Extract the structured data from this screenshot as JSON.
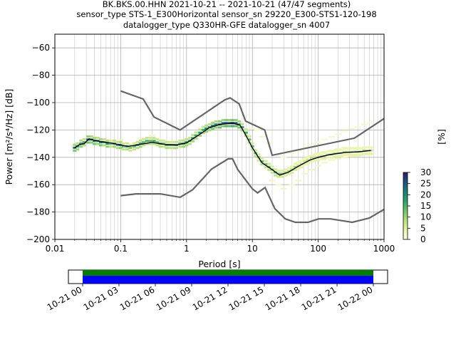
{
  "chart_data": {
    "type": "heatmap",
    "title_lines": [
      "BK.BKS.00.HHN   2021-10-21 -- 2021-10-21  (47/47 segments)",
      "sensor_type STS-1_E300Horizontal sensor_sn 29220_E300-STS1-120-198",
      "datalogger_type Q330HR-GFE datalogger_sn 4007"
    ],
    "xlabel": "Period [s]",
    "ylabel": "Power [m²/s⁴/Hz] [dB]",
    "x_scale": "log",
    "xlim": [
      0.01,
      1000
    ],
    "ylim": [
      -200,
      -50
    ],
    "x_ticks": [
      {
        "value": 0.01,
        "label": "0.01"
      },
      {
        "value": 0.1,
        "label": "0.1"
      },
      {
        "value": 1,
        "label": "1"
      },
      {
        "value": 10,
        "label": "10"
      },
      {
        "value": 100,
        "label": "100"
      },
      {
        "value": 1000,
        "label": "1000"
      }
    ],
    "y_ticks": [
      {
        "value": -60,
        "label": "−60"
      },
      {
        "value": -80,
        "label": "−80"
      },
      {
        "value": -100,
        "label": "−100"
      },
      {
        "value": -120,
        "label": "−120"
      },
      {
        "value": -140,
        "label": "−140"
      },
      {
        "value": -160,
        "label": "−160"
      },
      {
        "value": -180,
        "label": "−180"
      },
      {
        "value": -200,
        "label": "−200"
      }
    ],
    "grid": true,
    "colorbar": {
      "label": "[%]",
      "range": [
        0,
        30
      ],
      "ticks": [
        {
          "value": 0,
          "label": "0"
        },
        {
          "value": 5,
          "label": "5"
        },
        {
          "value": 10,
          "label": "10"
        },
        {
          "value": 15,
          "label": "15"
        },
        {
          "value": 20,
          "label": "20"
        },
        {
          "value": 25,
          "label": "25"
        },
        {
          "value": 30,
          "label": "30"
        }
      ],
      "colors": [
        "#ffffe0",
        "#e8f3a8",
        "#b8df7a",
        "#6cc46a",
        "#2aa36c",
        "#1a7f7a",
        "#1f4f86",
        "#2c1f5a"
      ]
    },
    "noise_model_high": [
      [
        0.1,
        -91.5
      ],
      [
        0.22,
        -97.4
      ],
      [
        0.32,
        -110.5
      ],
      [
        0.8,
        -120
      ],
      [
        3.8,
        -98
      ],
      [
        4.6,
        -96.5
      ],
      [
        6.3,
        -101
      ],
      [
        7.9,
        -113.5
      ],
      [
        15.4,
        -120
      ],
      [
        20,
        -138.5
      ],
      [
        354.8,
        -126
      ],
      [
        10000,
        -80
      ]
    ],
    "noise_model_low": [
      [
        0.1,
        -168
      ],
      [
        0.17,
        -166.7
      ],
      [
        0.4,
        -166.7
      ],
      [
        0.8,
        -169.2
      ],
      [
        1.24,
        -163.7
      ],
      [
        2.4,
        -148.6
      ],
      [
        4.3,
        -141.1
      ],
      [
        5,
        -141.1
      ],
      [
        6,
        -149
      ],
      [
        10,
        -163
      ],
      [
        12,
        -166
      ],
      [
        15.6,
        -162.1
      ],
      [
        21.9,
        -177.5
      ],
      [
        31.6,
        -185
      ],
      [
        45,
        -187.5
      ],
      [
        70,
        -187.5
      ],
      [
        101,
        -185
      ],
      [
        154,
        -185
      ],
      [
        328,
        -187.5
      ],
      [
        600,
        -184.4
      ],
      [
        1000,
        -178
      ]
    ],
    "median_curve": [
      [
        0.02,
        -133
      ],
      [
        0.023,
        -131
      ],
      [
        0.028,
        -130
      ],
      [
        0.033,
        -126.5
      ],
      [
        0.04,
        -127.5
      ],
      [
        0.05,
        -128.5
      ],
      [
        0.07,
        -129.5
      ],
      [
        0.1,
        -131
      ],
      [
        0.13,
        -132
      ],
      [
        0.2,
        -130.5
      ],
      [
        0.3,
        -129
      ],
      [
        0.45,
        -130.5
      ],
      [
        0.7,
        -131
      ],
      [
        1.0,
        -129.5
      ],
      [
        1.5,
        -124
      ],
      [
        2.2,
        -118.5
      ],
      [
        3.2,
        -116
      ],
      [
        5.0,
        -115
      ],
      [
        6.5,
        -116.5
      ],
      [
        8.0,
        -124
      ],
      [
        10,
        -133
      ],
      [
        14,
        -144
      ],
      [
        20,
        -149
      ],
      [
        26,
        -153
      ],
      [
        35,
        -151
      ],
      [
        50,
        -146.5
      ],
      [
        75,
        -142
      ],
      [
        100,
        -140
      ],
      [
        150,
        -138
      ],
      [
        250,
        -136.5
      ],
      [
        400,
        -136
      ],
      [
        630,
        -135
      ]
    ],
    "density_cells": [
      [
        0.02,
        -133,
        22
      ],
      [
        0.022,
        -132,
        18
      ],
      [
        0.025,
        -130,
        20
      ],
      [
        0.028,
        -129,
        16
      ],
      [
        0.032,
        -127,
        24
      ],
      [
        0.036,
        -127,
        20
      ],
      [
        0.04,
        -128,
        22
      ],
      [
        0.045,
        -128,
        18
      ],
      [
        0.05,
        -129,
        22
      ],
      [
        0.056,
        -129,
        16
      ],
      [
        0.063,
        -130,
        20
      ],
      [
        0.07,
        -130,
        14
      ],
      [
        0.08,
        -130,
        18
      ],
      [
        0.09,
        -131,
        16
      ],
      [
        0.1,
        -131,
        20
      ],
      [
        0.11,
        -132,
        14
      ],
      [
        0.125,
        -132,
        16
      ],
      [
        0.14,
        -133,
        12
      ],
      [
        0.16,
        -132,
        14
      ],
      [
        0.18,
        -131,
        16
      ],
      [
        0.2,
        -130,
        18
      ],
      [
        0.224,
        -129,
        14
      ],
      [
        0.25,
        -128,
        16
      ],
      [
        0.28,
        -128,
        14
      ],
      [
        0.32,
        -128,
        16
      ],
      [
        0.36,
        -129,
        14
      ],
      [
        0.4,
        -130,
        16
      ],
      [
        0.45,
        -130,
        14
      ],
      [
        0.5,
        -131,
        16
      ],
      [
        0.56,
        -131,
        14
      ],
      [
        0.63,
        -131,
        14
      ],
      [
        0.7,
        -131,
        16
      ],
      [
        0.8,
        -130,
        16
      ],
      [
        0.9,
        -130,
        18
      ],
      [
        1.0,
        -129,
        18
      ],
      [
        1.12,
        -128,
        16
      ],
      [
        1.25,
        -126,
        18
      ],
      [
        1.4,
        -124,
        16
      ],
      [
        1.6,
        -122,
        18
      ],
      [
        1.8,
        -120,
        16
      ],
      [
        2.0,
        -119,
        20
      ],
      [
        2.24,
        -118,
        18
      ],
      [
        2.5,
        -117,
        22
      ],
      [
        2.8,
        -116,
        20
      ],
      [
        3.2,
        -116,
        24
      ],
      [
        3.6,
        -115,
        22
      ],
      [
        4.0,
        -115,
        26
      ],
      [
        4.5,
        -115,
        24
      ],
      [
        5.0,
        -115,
        28
      ],
      [
        5.6,
        -115,
        24
      ],
      [
        6.3,
        -116,
        22
      ],
      [
        7.0,
        -118,
        18
      ],
      [
        8.0,
        -122,
        16
      ],
      [
        9.0,
        -127,
        14
      ],
      [
        10,
        -132,
        14
      ],
      [
        11.2,
        -137,
        14
      ],
      [
        12.5,
        -140,
        12
      ],
      [
        14,
        -143,
        14
      ],
      [
        16,
        -145,
        12
      ],
      [
        18,
        -147,
        14
      ],
      [
        20,
        -149,
        12
      ],
      [
        22.4,
        -151,
        14
      ],
      [
        25,
        -152,
        12
      ],
      [
        28,
        -152,
        12
      ],
      [
        32,
        -151,
        10
      ],
      [
        36,
        -150,
        10
      ],
      [
        40,
        -149,
        10
      ],
      [
        45,
        -147,
        10
      ],
      [
        50,
        -146,
        8
      ],
      [
        56,
        -145,
        8
      ],
      [
        63,
        -143,
        8
      ],
      [
        70,
        -142,
        8
      ],
      [
        80,
        -141,
        8
      ],
      [
        90,
        -140,
        8
      ],
      [
        100,
        -140,
        8
      ],
      [
        112,
        -139,
        8
      ],
      [
        125,
        -139,
        8
      ],
      [
        140,
        -138,
        8
      ],
      [
        160,
        -138,
        8
      ],
      [
        180,
        -137,
        8
      ],
      [
        200,
        -137,
        8
      ],
      [
        224,
        -137,
        8
      ],
      [
        250,
        -136,
        8
      ],
      [
        280,
        -136,
        8
      ],
      [
        320,
        -136,
        8
      ],
      [
        360,
        -136,
        8
      ],
      [
        400,
        -136,
        8
      ],
      [
        450,
        -136,
        8
      ],
      [
        500,
        -135,
        8
      ],
      [
        560,
        -135,
        8
      ],
      [
        630,
        -135,
        8
      ]
    ],
    "faint_cells": [
      [
        0.1,
        -127,
        2
      ],
      [
        0.2,
        -126,
        2
      ],
      [
        0.3,
        -124,
        2
      ],
      [
        10,
        -119,
        2
      ],
      [
        12,
        -120,
        2
      ],
      [
        14,
        -125,
        2
      ],
      [
        18,
        -130,
        2
      ],
      [
        20,
        -157,
        3
      ],
      [
        25,
        -160,
        3
      ],
      [
        30,
        -163,
        3
      ],
      [
        40,
        -160,
        3
      ],
      [
        50,
        -157,
        3
      ],
      [
        63,
        -152,
        3
      ],
      [
        80,
        -149,
        3
      ],
      [
        100,
        -146,
        3
      ],
      [
        125,
        -144,
        3
      ],
      [
        160,
        -142,
        3
      ],
      [
        200,
        -141,
        3
      ],
      [
        250,
        -140,
        3
      ],
      [
        320,
        -139,
        3
      ],
      [
        400,
        -139,
        3
      ],
      [
        500,
        -138,
        3
      ],
      [
        630,
        -138,
        3
      ],
      [
        30,
        -140,
        2
      ],
      [
        40,
        -137,
        2
      ],
      [
        50,
        -135,
        2
      ],
      [
        63,
        -133,
        2
      ],
      [
        80,
        -131,
        2
      ],
      [
        100,
        -129,
        2
      ],
      [
        125,
        -127,
        2
      ],
      [
        160,
        -125,
        2
      ],
      [
        200,
        -123,
        2
      ],
      [
        250,
        -121,
        2
      ],
      [
        320,
        -119,
        2
      ],
      [
        400,
        -118,
        2
      ],
      [
        500,
        -116,
        2
      ],
      [
        630,
        -115,
        2
      ],
      [
        40,
        -148,
        4
      ],
      [
        50,
        -144,
        4
      ],
      [
        63,
        -141,
        4
      ],
      [
        80,
        -139,
        4
      ],
      [
        100,
        -137,
        4
      ],
      [
        125,
        -136,
        4
      ],
      [
        160,
        -135,
        4
      ],
      [
        200,
        -134,
        4
      ],
      [
        250,
        -133,
        4
      ],
      [
        320,
        -133,
        4
      ],
      [
        400,
        -133,
        4
      ],
      [
        500,
        -133,
        4
      ],
      [
        630,
        -133,
        4
      ]
    ],
    "time_axis": {
      "ticks": [
        "10-21 00",
        "10-21 03",
        "10-21 06",
        "10-21 09",
        "10-21 12",
        "10-21 15",
        "10-21 18",
        "10-21 21",
        "10-22 00"
      ],
      "data_coverage_color": "#0000ff",
      "gap_free_color": "#008000"
    }
  }
}
